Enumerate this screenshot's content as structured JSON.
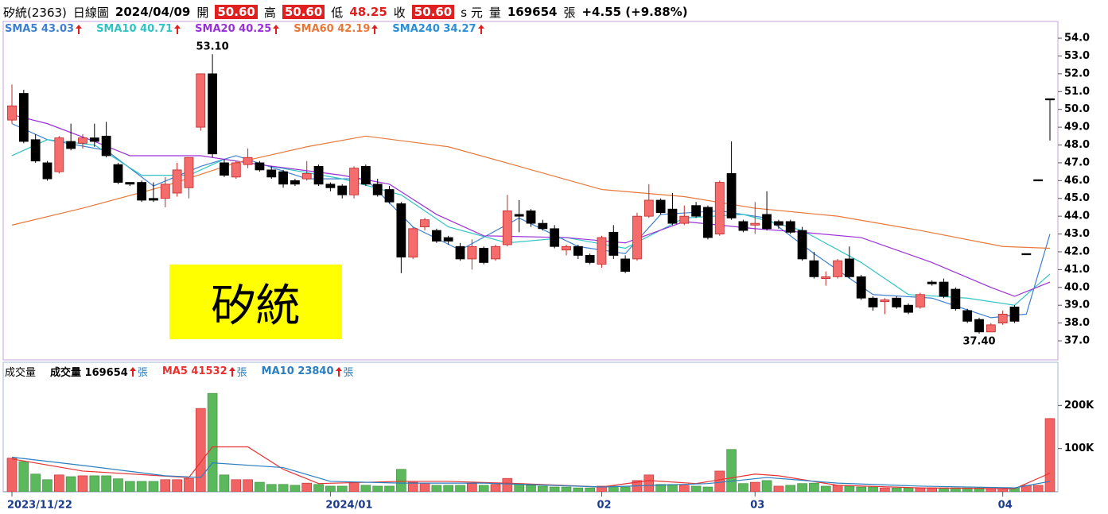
{
  "header": {
    "name": "矽統(2363)",
    "period": "日線圖",
    "date": "2024/04/09",
    "open_label": "開",
    "open": "50.60",
    "high_label": "高",
    "high": "50.60",
    "low_label": "低",
    "low": "48.25",
    "close_label": "收",
    "close": "50.60",
    "unit": "s 元",
    "volume_label": "量",
    "volume": "169654",
    "volume_unit": "張",
    "change": "+4.55 (+9.88%)"
  },
  "label_box": "矽統",
  "chart_data": [
    {
      "type": "candlestick",
      "open": [
        49.4,
        50.9,
        48.3,
        47.0,
        46.5,
        48.2,
        48.1,
        48.4,
        48.5,
        46.9,
        45.9,
        45.9,
        45.0,
        45.0,
        45.3,
        45.6,
        49.0,
        52.0,
        47.0,
        46.2,
        46.9,
        47.0,
        46.6,
        46.5,
        46.0,
        46.1,
        46.8,
        45.8,
        45.7,
        45.2,
        46.8,
        45.8,
        45.5,
        44.7,
        41.7,
        43.4,
        43.2,
        42.8,
        42.3,
        41.6,
        42.2,
        41.6,
        42.4,
        44.1,
        44.3,
        43.6,
        43.3,
        42.1,
        42.3,
        41.8,
        41.3,
        43.1,
        41.6,
        41.6,
        44.0,
        44.9,
        44.4,
        43.6,
        44.6,
        44.5,
        43.0,
        46.4,
        43.7,
        43.5,
        44.1,
        43.7,
        43.7,
        43.2,
        41.5,
        40.5,
        40.6,
        41.6,
        40.6,
        39.4,
        39.2,
        39.4,
        39.0,
        38.9,
        40.3,
        40.3,
        39.9,
        38.7,
        38.2,
        37.5,
        38.0,
        38.9,
        41.9,
        46.05,
        50.6
      ],
      "high": [
        51.4,
        51.1,
        48.6,
        47.1,
        48.5,
        49.2,
        48.6,
        49.2,
        49.3,
        47.0,
        45.9,
        46.0,
        45.9,
        46.2,
        47.0,
        47.3,
        52.0,
        53.1,
        47.2,
        47.1,
        47.8,
        47.1,
        46.8,
        46.6,
        46.1,
        47.1,
        46.9,
        45.9,
        45.8,
        46.8,
        46.9,
        46.1,
        45.7,
        44.8,
        43.4,
        43.9,
        43.3,
        42.9,
        42.5,
        42.7,
        42.3,
        42.4,
        45.2,
        44.9,
        44.4,
        43.8,
        43.5,
        42.4,
        42.4,
        41.9,
        42.9,
        43.5,
        41.8,
        44.2,
        45.8,
        45.0,
        45.3,
        44.6,
        44.8,
        44.6,
        46.0,
        48.2,
        43.8,
        44.8,
        45.4,
        43.8,
        43.8,
        43.4,
        42.0,
        40.9,
        41.6,
        42.3,
        40.7,
        39.5,
        39.4,
        39.5,
        39.1,
        39.7,
        40.4,
        40.5,
        40.0,
        38.8,
        38.3,
        38.0,
        38.7,
        39.0,
        41.9,
        46.05,
        50.6
      ],
      "low": [
        49.2,
        48.1,
        47.0,
        46.0,
        46.4,
        47.7,
        47.8,
        47.9,
        47.3,
        45.8,
        45.7,
        44.8,
        44.8,
        44.5,
        45.1,
        45.0,
        48.8,
        47.3,
        46.2,
        46.1,
        46.7,
        46.5,
        46.1,
        45.6,
        45.7,
        46.0,
        45.7,
        45.4,
        45.0,
        45.0,
        45.7,
        45.1,
        44.7,
        40.8,
        41.6,
        43.2,
        42.5,
        42.4,
        41.5,
        41.0,
        41.3,
        41.5,
        42.3,
        43.1,
        43.4,
        43.2,
        42.2,
        41.8,
        41.6,
        41.3,
        41.1,
        41.6,
        40.8,
        41.5,
        43.9,
        44.1,
        43.5,
        43.5,
        43.9,
        42.7,
        42.9,
        43.8,
        43.1,
        43.0,
        43.2,
        43.3,
        43.0,
        41.5,
        40.5,
        40.1,
        40.5,
        40.5,
        39.3,
        38.7,
        38.5,
        38.8,
        38.5,
        38.8,
        40.1,
        39.4,
        38.7,
        38.0,
        37.4,
        37.5,
        37.9,
        38.0,
        41.9,
        46.05,
        48.25
      ],
      "close": [
        50.2,
        48.2,
        47.1,
        46.1,
        48.4,
        47.8,
        48.4,
        48.2,
        47.4,
        45.9,
        45.8,
        44.9,
        44.9,
        45.8,
        46.6,
        47.3,
        52.0,
        47.5,
        46.3,
        47.0,
        47.3,
        46.6,
        46.2,
        45.8,
        45.8,
        46.4,
        45.8,
        45.6,
        45.2,
        46.7,
        45.8,
        45.2,
        44.8,
        41.7,
        43.3,
        43.8,
        42.6,
        42.6,
        41.6,
        42.3,
        41.4,
        42.3,
        44.3,
        44.0,
        43.6,
        43.3,
        42.3,
        42.3,
        41.8,
        41.4,
        42.8,
        41.8,
        40.9,
        44.0,
        44.9,
        44.2,
        43.6,
        44.0,
        44.0,
        42.8,
        45.9,
        43.9,
        43.2,
        43.6,
        43.3,
        43.5,
        43.1,
        41.6,
        40.6,
        40.6,
        41.5,
        40.6,
        39.4,
        38.9,
        39.3,
        38.9,
        38.6,
        39.6,
        40.2,
        39.5,
        38.8,
        38.1,
        37.5,
        37.9,
        38.5,
        38.1,
        41.9,
        46.05,
        50.6
      ],
      "high_label": "53.10",
      "low_label": "37.40",
      "up_color": "#f46c6c",
      "down_color": "#000000",
      "ylim": [
        35.93,
        54.94
      ],
      "yticks": [
        {
          "value": 37,
          "label": "37.0"
        },
        {
          "value": 38,
          "label": "38.0"
        },
        {
          "value": 39,
          "label": "39.0"
        },
        {
          "value": 40,
          "label": "40.0"
        },
        {
          "value": 41,
          "label": "41.0"
        },
        {
          "value": 42,
          "label": "42.0"
        },
        {
          "value": 43,
          "label": "43.0"
        },
        {
          "value": 44,
          "label": "44.0"
        },
        {
          "value": 45,
          "label": "45.0"
        },
        {
          "value": 46,
          "label": "46.0"
        },
        {
          "value": 47,
          "label": "47.0"
        },
        {
          "value": 48,
          "label": "48.0"
        },
        {
          "value": 49,
          "label": "49.0"
        },
        {
          "value": 50,
          "label": "50.0"
        },
        {
          "value": 51,
          "label": "51.0"
        },
        {
          "value": 52,
          "label": "52.0"
        },
        {
          "value": 53,
          "label": "53.0"
        },
        {
          "value": 54,
          "label": "54.0"
        }
      ],
      "series": [
        {
          "name": "SMA5 43.03",
          "color": "#3d7fd0",
          "x": [
            0,
            3,
            8,
            12,
            16,
            19,
            25,
            30,
            34,
            38,
            43,
            48,
            52,
            55,
            60,
            64,
            68,
            73,
            78,
            83,
            86,
            88
          ],
          "values": [
            49.2,
            48.3,
            47.7,
            45.7,
            46.8,
            47.4,
            46.1,
            46.1,
            43.4,
            42.1,
            43.9,
            42.3,
            41.9,
            44.1,
            44.3,
            43.9,
            41.9,
            39.6,
            39.4,
            38.3,
            38.5,
            43.0
          ]
        },
        {
          "name": "SMA10 40.71",
          "color": "#2fc4c4",
          "x": [
            0,
            3,
            7,
            11,
            15,
            18,
            22,
            28,
            33,
            37,
            42,
            47,
            52,
            57,
            62,
            67,
            72,
            76,
            81,
            85,
            88
          ],
          "values": [
            47.4,
            48.3,
            48.0,
            46.3,
            46.3,
            47.2,
            46.8,
            46.1,
            45.2,
            43.4,
            42.5,
            42.8,
            42.2,
            43.9,
            44.1,
            43.2,
            41.4,
            39.6,
            39.4,
            39.0,
            40.75
          ]
        },
        {
          "name": "SMA20 40.25",
          "color": "#9b30d9",
          "x": [
            0,
            3,
            7,
            10,
            16,
            21,
            28,
            32,
            36,
            40,
            47,
            52,
            57,
            63,
            67,
            72,
            78,
            83,
            85,
            88
          ],
          "values": [
            49.7,
            49.2,
            48.2,
            47.4,
            47.4,
            46.9,
            46.3,
            45.8,
            44.1,
            42.9,
            42.8,
            42.5,
            43.7,
            43.3,
            43.1,
            42.8,
            41.4,
            40.0,
            39.5,
            40.3
          ]
        },
        {
          "name": "SMA60 42.19",
          "color": "#e8783a",
          "x": [
            0,
            6,
            13,
            19,
            25,
            30,
            37,
            43,
            50,
            57,
            63,
            70,
            77,
            84,
            88
          ],
          "values": [
            43.5,
            44.45,
            45.7,
            47.0,
            47.9,
            48.5,
            47.9,
            46.8,
            45.5,
            45.1,
            44.45,
            44.0,
            43.2,
            42.3,
            42.2
          ]
        },
        {
          "name": "SMA240 34.27",
          "color": "#2a8fd6",
          "x": [],
          "values": []
        }
      ]
    },
    {
      "type": "bar",
      "title": "成交量",
      "name": "成交量 169654",
      "unit": "張",
      "categories": [
        "2023/11/22",
        null,
        null,
        null,
        null,
        null,
        null,
        null,
        null,
        null,
        null,
        null,
        null,
        null,
        null,
        null,
        null,
        null,
        null,
        null,
        null,
        null,
        null,
        null,
        null,
        null,
        null,
        "2024/01",
        null,
        null,
        null,
        null,
        null,
        null,
        null,
        null,
        null,
        null,
        null,
        null,
        null,
        null,
        null,
        null,
        null,
        null,
        null,
        null,
        null,
        null,
        "02",
        null,
        null,
        null,
        null,
        null,
        null,
        null,
        null,
        null,
        null,
        null,
        null,
        "03",
        null,
        null,
        null,
        null,
        null,
        null,
        null,
        null,
        null,
        null,
        null,
        null,
        null,
        null,
        null,
        null,
        null,
        null,
        null,
        null,
        "04",
        null,
        null,
        null,
        null
      ],
      "values": [
        78000,
        70000,
        41000,
        28000,
        39000,
        35000,
        37000,
        37000,
        37000,
        30000,
        24000,
        24000,
        24000,
        28000,
        28000,
        31000,
        193000,
        228000,
        39000,
        28000,
        28000,
        22000,
        17000,
        17000,
        15000,
        20000,
        17000,
        13000,
        13000,
        22000,
        15000,
        13000,
        13000,
        52000,
        22000,
        20000,
        15000,
        15000,
        15000,
        19000,
        15000,
        17000,
        31000,
        19000,
        15000,
        13000,
        11000,
        11000,
        9000,
        9000,
        13000,
        13000,
        11000,
        26000,
        39000,
        17000,
        17000,
        15000,
        13000,
        11000,
        48000,
        98000,
        19000,
        22000,
        26000,
        13000,
        15000,
        19000,
        20000,
        13000,
        15000,
        13000,
        11000,
        11000,
        9000,
        9000,
        9000,
        9000,
        9000,
        9000,
        9000,
        9000,
        9000,
        7000,
        7000,
        9000,
        15000,
        15000,
        169654
      ],
      "up_color": "#f26464",
      "down_color": "#5cb85c",
      "ylim": [
        0,
        300000
      ],
      "yticks": [
        {
          "value": 100000,
          "label": "100K"
        },
        {
          "value": 200000,
          "label": "200K"
        }
      ],
      "series": [
        {
          "name": "MA5 41532",
          "unit": "張",
          "color": "#e83030",
          "x": [
            0,
            6,
            15,
            17,
            20,
            23,
            26,
            33,
            37,
            43,
            50,
            54,
            58,
            63,
            65,
            70,
            77,
            85,
            88
          ],
          "values": [
            76000,
            48000,
            33000,
            104000,
            104000,
            52000,
            19000,
            24000,
            24000,
            19000,
            11000,
            26000,
            19000,
            41000,
            37000,
            15000,
            9000,
            7000,
            43000
          ]
        },
        {
          "name": "MA10 23840",
          "unit": "張",
          "color": "#2a7fc0",
          "x": [
            0,
            6,
            13,
            16,
            17,
            23,
            27,
            33,
            40,
            50,
            59,
            64,
            70,
            77,
            85,
            88
          ],
          "values": [
            80000,
            61000,
            37000,
            33000,
            67000,
            56000,
            24000,
            20000,
            20000,
            11000,
            19000,
            33000,
            20000,
            13000,
            9000,
            24000
          ]
        }
      ]
    }
  ]
}
